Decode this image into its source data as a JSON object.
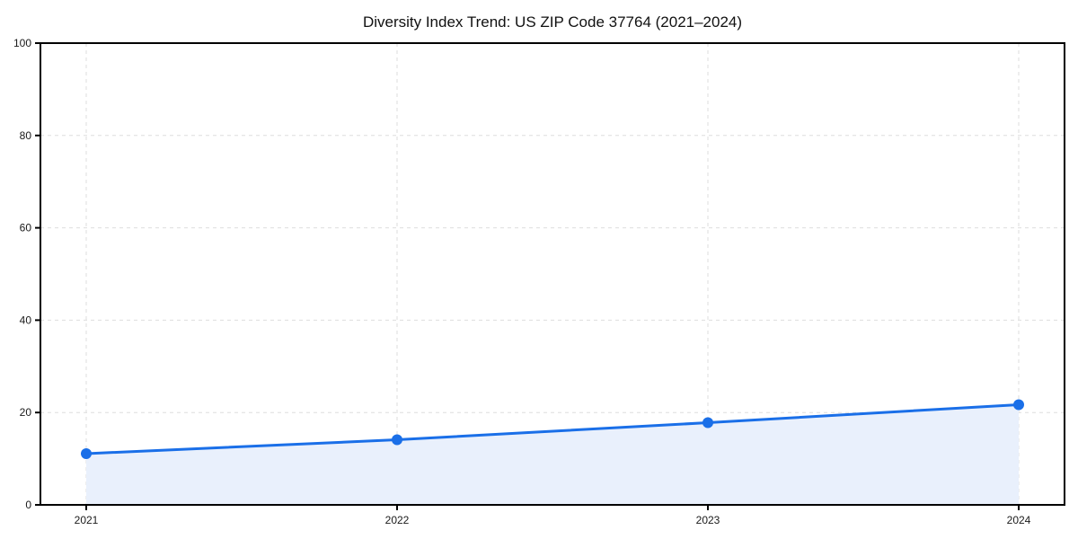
{
  "chart_data": {
    "type": "area",
    "title": "Diversity Index Trend: US ZIP Code 37764 (2021–2024)",
    "x": [
      "2021",
      "2022",
      "2023",
      "2024"
    ],
    "series": [
      {
        "name": "Diversity Index",
        "values": [
          11.1,
          14.1,
          17.8,
          21.7
        ]
      }
    ],
    "xlabel": "",
    "ylabel": "",
    "ylim": [
      0,
      100
    ],
    "yticks": [
      0,
      20,
      40,
      60,
      80,
      100
    ],
    "grid": true,
    "grid_style": "dashed",
    "legend_position": "none",
    "colors": {
      "line": "#1a6fe8",
      "marker": "#1a6fe8",
      "fill": "#e9f0fc",
      "grid": "#dedede",
      "axis": "#000000",
      "title_text": "#111111",
      "tick_text": "#1a1a1a",
      "background": "#ffffff"
    }
  }
}
